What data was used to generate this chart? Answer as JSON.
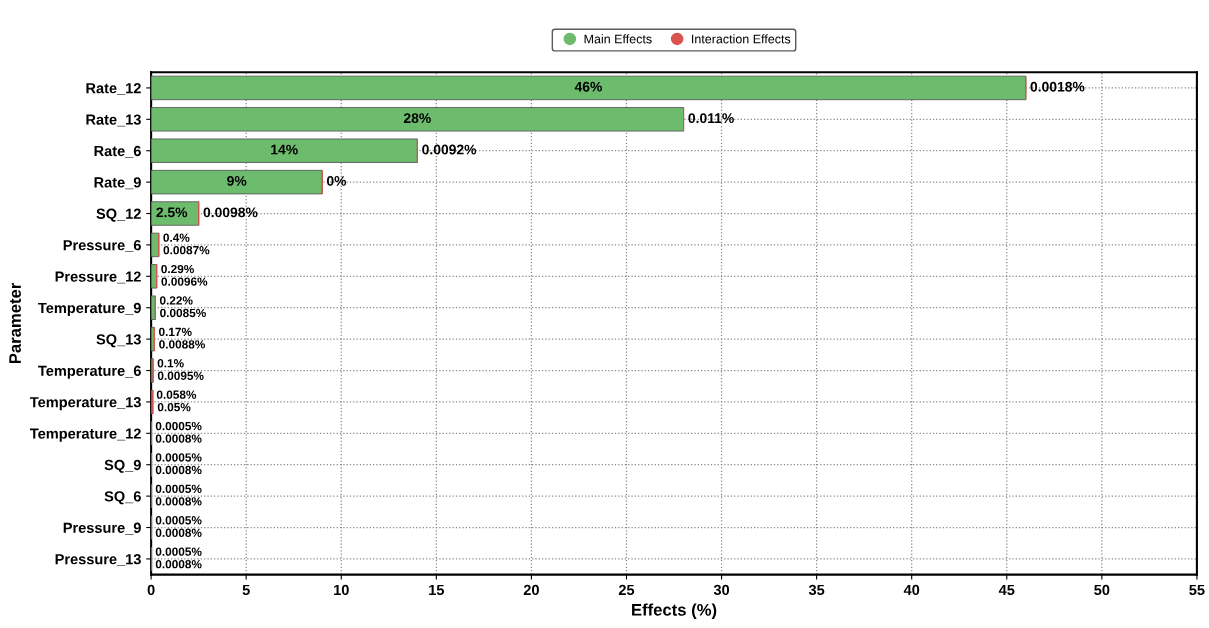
{
  "chart_data": {
    "type": "bar",
    "orientation": "horizontal",
    "stacked": true,
    "xlabel": "Effects (%)",
    "ylabel": "Parameter",
    "categories": [
      "Rate_12",
      "Rate_13",
      "Rate_6",
      "Rate_9",
      "SQ_12",
      "Pressure_6",
      "Pressure_12",
      "Temperature_9",
      "SQ_13",
      "Temperature_6",
      "Temperature_13",
      "Temperature_12",
      "SQ_9",
      "SQ_6",
      "Pressure_9",
      "Pressure_13"
    ],
    "series": [
      {
        "name": "Main Effects",
        "color": "#6dbb6d",
        "values": [
          46,
          28,
          14,
          9,
          2.5,
          0.4,
          0.29,
          0.22,
          0.17,
          0.1,
          0.058,
          0.0005,
          0.0005,
          0.0005,
          0.0005,
          0.0005
        ],
        "value_labels": [
          "46%",
          "28%",
          "14%",
          "9%",
          "2.5%",
          "0.4%",
          "0.29%",
          "0.22%",
          "0.17%",
          "0.1%",
          "0.058%",
          "0.0005%",
          "0.0005%",
          "0.0005%",
          "0.0005%",
          "0.0005%"
        ]
      },
      {
        "name": "Interaction Effects",
        "color": "#d9534f",
        "values": [
          0.0018,
          0.011,
          0.0092,
          0,
          0.0098,
          0.0087,
          0.0096,
          0.0085,
          0.0088,
          0.0095,
          0.05,
          0.0008,
          0.0008,
          0.0008,
          0.0008,
          0.0008
        ],
        "value_labels": [
          "0.0018%",
          "0.011%",
          "0.0092%",
          "0%",
          "0.0098%",
          "0.0087%",
          "0.0096%",
          "0.0085%",
          "0.0088%",
          "0.0095%",
          "0.05%",
          "0.0008%",
          "0.0008%",
          "0.0008%",
          "0.0008%",
          "0.0008%"
        ]
      }
    ],
    "xlim": [
      0,
      55
    ],
    "xticks": [
      0,
      5,
      10,
      15,
      20,
      25,
      30,
      35,
      40,
      45,
      50,
      55
    ],
    "grid": true,
    "legend": "top"
  }
}
